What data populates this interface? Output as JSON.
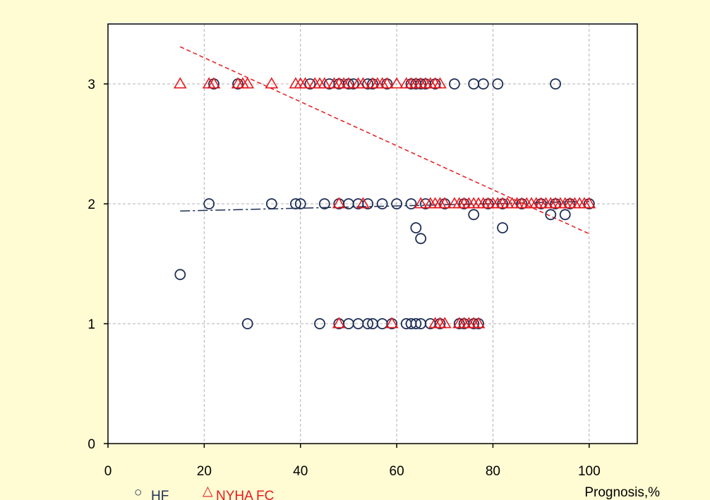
{
  "colors": {
    "background": "#fffbd3",
    "plot_area": "#ffffff",
    "hf_marker": "#1f2f55",
    "nyha_marker": "#e8191f",
    "hf_trend": "#1f2f55",
    "nyha_trend": "#e8191f",
    "grid": "#b0b0b0",
    "frame": "#000000"
  },
  "chart_data": {
    "type": "scatter",
    "title": "",
    "xlabel": "Prognosis,%",
    "ylabel": "",
    "xlim": [
      0,
      110
    ],
    "ylim": [
      0,
      3.5
    ],
    "x_ticks": [
      0,
      20,
      40,
      60,
      80,
      100
    ],
    "y_ticks": [
      0,
      1,
      2,
      3
    ],
    "x_tick_labels": [
      "0",
      "20",
      "40",
      "60",
      "80",
      "100"
    ],
    "y_tick_labels": [
      "0",
      "1",
      "2",
      "3"
    ],
    "grid": true,
    "legend_position": "bottom-left",
    "series": [
      {
        "name": "HF",
        "marker": "circle",
        "color": "#1f2f55",
        "points": [
          [
            15,
            1.41
          ],
          [
            22,
            3
          ],
          [
            27,
            3
          ],
          [
            42,
            3
          ],
          [
            46,
            3
          ],
          [
            48,
            3
          ],
          [
            50,
            3
          ],
          [
            51,
            3
          ],
          [
            54,
            3
          ],
          [
            55,
            3
          ],
          [
            58,
            3
          ],
          [
            63,
            3
          ],
          [
            64,
            3
          ],
          [
            65,
            3
          ],
          [
            66,
            3
          ],
          [
            68,
            3
          ],
          [
            72,
            3
          ],
          [
            76,
            3
          ],
          [
            78,
            3
          ],
          [
            81,
            3
          ],
          [
            93,
            3
          ],
          [
            21,
            2
          ],
          [
            34,
            2
          ],
          [
            39,
            2
          ],
          [
            40,
            2
          ],
          [
            45,
            2
          ],
          [
            48,
            2
          ],
          [
            50,
            2
          ],
          [
            52,
            2
          ],
          [
            54,
            2
          ],
          [
            57,
            2
          ],
          [
            60,
            2
          ],
          [
            63,
            2
          ],
          [
            66,
            2
          ],
          [
            70,
            2
          ],
          [
            74,
            2
          ],
          [
            79,
            2
          ],
          [
            82,
            2
          ],
          [
            86,
            2
          ],
          [
            90,
            2
          ],
          [
            93,
            2
          ],
          [
            96,
            2
          ],
          [
            100,
            2
          ],
          [
            76,
            1.91
          ],
          [
            92,
            1.91
          ],
          [
            95,
            1.91
          ],
          [
            64,
            1.8
          ],
          [
            82,
            1.8
          ],
          [
            65,
            1.71
          ],
          [
            29,
            1
          ],
          [
            44,
            1
          ],
          [
            48,
            1
          ],
          [
            50,
            1
          ],
          [
            52,
            1
          ],
          [
            54,
            1
          ],
          [
            55,
            1
          ],
          [
            57,
            1
          ],
          [
            59,
            1
          ],
          [
            62,
            1
          ],
          [
            63,
            1
          ],
          [
            64,
            1
          ],
          [
            65,
            1
          ],
          [
            67,
            1
          ],
          [
            69,
            1
          ],
          [
            73,
            1
          ],
          [
            74,
            1
          ],
          [
            76,
            1
          ],
          [
            77,
            1
          ]
        ],
        "trend": {
          "style": "dash-dot",
          "x": [
            15,
            100
          ],
          "y": [
            1.94,
            2.02
          ]
        }
      },
      {
        "name": "NYHA FC",
        "marker": "triangle",
        "color": "#e8191f",
        "points": [
          [
            15,
            3
          ],
          [
            21,
            3
          ],
          [
            22,
            3
          ],
          [
            27,
            3
          ],
          [
            28,
            3
          ],
          [
            29,
            3
          ],
          [
            34,
            3
          ],
          [
            39,
            3
          ],
          [
            40,
            3
          ],
          [
            41,
            3
          ],
          [
            43,
            3
          ],
          [
            44,
            3
          ],
          [
            45,
            3
          ],
          [
            47,
            3
          ],
          [
            48,
            3
          ],
          [
            49,
            3
          ],
          [
            50,
            3
          ],
          [
            52,
            3
          ],
          [
            53,
            3
          ],
          [
            55,
            3
          ],
          [
            56,
            3
          ],
          [
            57,
            3
          ],
          [
            58,
            3
          ],
          [
            60,
            3
          ],
          [
            62,
            3
          ],
          [
            63,
            3
          ],
          [
            64,
            3
          ],
          [
            65,
            3
          ],
          [
            66,
            3
          ],
          [
            67,
            3
          ],
          [
            68,
            3
          ],
          [
            69,
            3
          ],
          [
            48,
            2
          ],
          [
            53,
            2
          ],
          [
            65,
            2
          ],
          [
            67,
            2
          ],
          [
            68,
            2
          ],
          [
            69,
            2
          ],
          [
            70,
            2
          ],
          [
            72,
            2
          ],
          [
            73,
            2
          ],
          [
            74,
            2
          ],
          [
            75,
            2
          ],
          [
            76,
            2
          ],
          [
            77,
            2
          ],
          [
            78,
            2
          ],
          [
            79,
            2
          ],
          [
            80,
            2
          ],
          [
            81,
            2
          ],
          [
            82,
            2
          ],
          [
            83,
            2
          ],
          [
            84,
            2
          ],
          [
            85,
            2
          ],
          [
            86,
            2
          ],
          [
            87,
            2
          ],
          [
            88,
            2
          ],
          [
            89,
            2
          ],
          [
            90,
            2
          ],
          [
            91,
            2
          ],
          [
            92,
            2
          ],
          [
            93,
            2
          ],
          [
            94,
            2
          ],
          [
            95,
            2
          ],
          [
            96,
            2
          ],
          [
            97,
            2
          ],
          [
            98,
            2
          ],
          [
            99,
            2
          ],
          [
            100,
            2
          ],
          [
            48,
            1
          ],
          [
            59,
            1
          ],
          [
            68,
            1
          ],
          [
            69,
            1
          ],
          [
            70,
            1
          ],
          [
            73,
            1
          ],
          [
            74,
            1
          ],
          [
            75,
            1
          ],
          [
            76,
            1
          ],
          [
            77,
            1
          ]
        ],
        "trend": {
          "style": "dashed",
          "x": [
            15,
            100
          ],
          "y": [
            3.31,
            1.75
          ]
        }
      }
    ]
  },
  "legend": {
    "items": [
      {
        "symbol": "○",
        "label": "HF",
        "color": "#1f2f55"
      },
      {
        "symbol": "△",
        "label": "NYHA FC",
        "color": "#e8191f"
      }
    ]
  }
}
